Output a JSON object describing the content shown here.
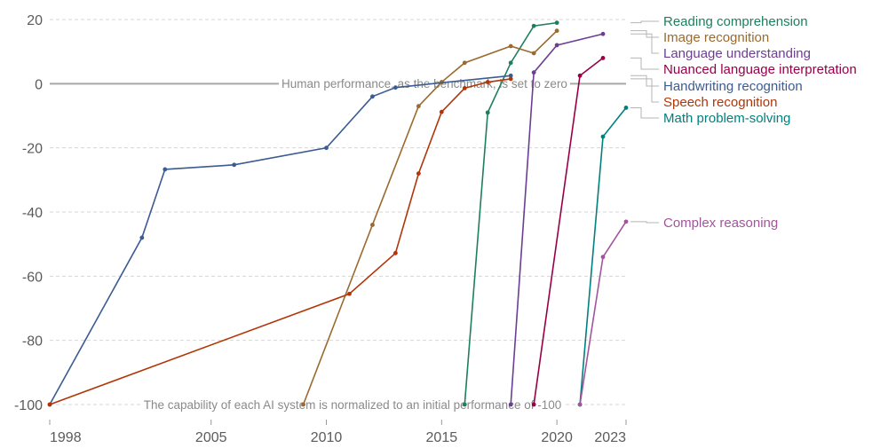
{
  "chart_data": {
    "type": "line",
    "title": "",
    "xlabel": "",
    "ylabel": "",
    "xlim": [
      1998,
      2023
    ],
    "ylim": [
      -100,
      20
    ],
    "grid": true,
    "x_ticks": [
      1998,
      2005,
      2010,
      2015,
      2020,
      2023
    ],
    "y_ticks": [
      20,
      0,
      -20,
      -40,
      -60,
      -80,
      -100
    ],
    "annotations": {
      "human": "Human performance, as the benchmark, is set to zero",
      "initial": "The capability of each AI system is normalized to an initial performance of -100"
    },
    "legend_placement": "right (line-end labels)",
    "series": [
      {
        "name": "Reading comprehension",
        "color": "#1d7f5f",
        "points": [
          [
            2016,
            -100
          ],
          [
            2017,
            -9
          ],
          [
            2018,
            6.5
          ],
          [
            2019,
            18
          ],
          [
            2020,
            19
          ]
        ]
      },
      {
        "name": "Image recognition",
        "color": "#9a6a2e",
        "points": [
          [
            2009,
            -100
          ],
          [
            2012,
            -44
          ],
          [
            2014,
            -7
          ],
          [
            2015,
            0.5
          ],
          [
            2016,
            6.5
          ],
          [
            2018,
            11.7
          ],
          [
            2019,
            9.5
          ],
          [
            2020,
            16.5
          ]
        ]
      },
      {
        "name": "Language understanding",
        "color": "#6b3d93",
        "points": [
          [
            2018,
            -100
          ],
          [
            2019,
            3.5
          ],
          [
            2020,
            12
          ],
          [
            2022,
            15.5
          ]
        ]
      },
      {
        "name": "Nuanced language interpretation",
        "color": "#970046",
        "points": [
          [
            2019,
            -100
          ],
          [
            2021,
            2.5
          ],
          [
            2022,
            8
          ]
        ]
      },
      {
        "name": "Handwriting recognition",
        "color": "#3b5b92",
        "points": [
          [
            1998,
            -100
          ],
          [
            2002,
            -48
          ],
          [
            2003,
            -26.7
          ],
          [
            2006,
            -25.3
          ],
          [
            2010,
            -20
          ],
          [
            2012,
            -4
          ],
          [
            2013,
            -1.2
          ],
          [
            2018,
            2.5
          ]
        ]
      },
      {
        "name": "Speech recognition",
        "color": "#b13507",
        "points": [
          [
            1998,
            -100
          ],
          [
            2011,
            -65.5
          ],
          [
            2013,
            -52.8
          ],
          [
            2014,
            -28
          ],
          [
            2015,
            -8.8
          ],
          [
            2016,
            -1.4
          ],
          [
            2017,
            0.5
          ],
          [
            2018,
            1.5
          ]
        ]
      },
      {
        "name": "Math problem-solving",
        "color": "#00807e",
        "points": [
          [
            2021,
            -100
          ],
          [
            2022,
            -16.5
          ],
          [
            2023,
            -7.5
          ]
        ]
      },
      {
        "name": "Complex reasoning",
        "color": "#a2559c",
        "points": [
          [
            2021,
            -100
          ],
          [
            2022,
            -54
          ],
          [
            2023,
            -43
          ]
        ]
      }
    ]
  }
}
